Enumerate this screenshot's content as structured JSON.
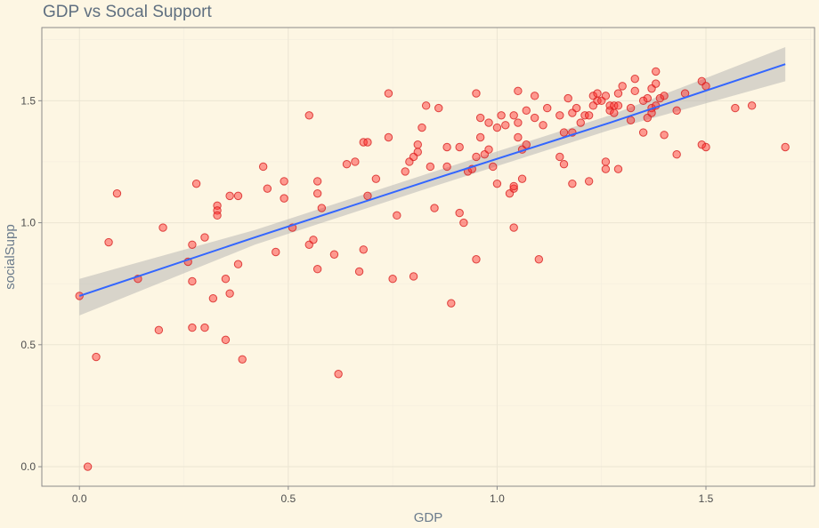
{
  "chart_data": {
    "type": "scatter",
    "title": "GDP vs Socal Support",
    "xlabel": "GDP",
    "ylabel": "socialSupp",
    "xlim": [
      -0.09,
      1.76
    ],
    "ylim": [
      -0.08,
      1.8
    ],
    "x_ticks": [
      0.0,
      0.5,
      1.0,
      1.5
    ],
    "y_ticks": [
      0.0,
      0.5,
      1.0,
      1.5
    ],
    "x_tick_labels": [
      "0.0",
      "0.5",
      "1.0",
      "1.5"
    ],
    "y_tick_labels": [
      "0.0",
      "0.5",
      "1.0",
      "1.5"
    ],
    "grid": true,
    "legend": "none",
    "point_color": "#ff2828",
    "fit_color": "#3366ff",
    "ci_color": "#aaaaaa",
    "background": "#fdf6e3",
    "trend": {
      "method": "linear",
      "x": [
        0.0,
        0.42,
        0.85,
        1.27,
        1.69
      ],
      "y": [
        0.7,
        0.94,
        1.18,
        1.41,
        1.65
      ],
      "ci_lower": [
        0.62,
        0.91,
        1.15,
        1.38,
        1.58
      ],
      "ci_upper": [
        0.77,
        0.97,
        1.21,
        1.44,
        1.72
      ]
    },
    "points": [
      [
        0.0,
        0.7
      ],
      [
        0.02,
        0.0
      ],
      [
        0.04,
        0.45
      ],
      [
        0.07,
        0.92
      ],
      [
        0.09,
        1.12
      ],
      [
        0.14,
        0.77
      ],
      [
        0.19,
        0.56
      ],
      [
        0.2,
        0.98
      ],
      [
        0.26,
        0.84
      ],
      [
        0.27,
        0.91
      ],
      [
        0.27,
        0.76
      ],
      [
        0.27,
        0.57
      ],
      [
        0.28,
        1.16
      ],
      [
        0.3,
        0.57
      ],
      [
        0.3,
        0.94
      ],
      [
        0.32,
        0.69
      ],
      [
        0.33,
        1.07
      ],
      [
        0.33,
        1.05
      ],
      [
        0.33,
        1.03
      ],
      [
        0.35,
        0.77
      ],
      [
        0.35,
        0.52
      ],
      [
        0.36,
        0.71
      ],
      [
        0.36,
        1.11
      ],
      [
        0.38,
        0.83
      ],
      [
        0.38,
        1.11
      ],
      [
        0.39,
        0.44
      ],
      [
        0.44,
        1.23
      ],
      [
        0.45,
        1.14
      ],
      [
        0.47,
        0.88
      ],
      [
        0.49,
        1.17
      ],
      [
        0.49,
        1.1
      ],
      [
        0.51,
        0.98
      ],
      [
        0.55,
        1.44
      ],
      [
        0.55,
        0.91
      ],
      [
        0.56,
        0.93
      ],
      [
        0.57,
        0.81
      ],
      [
        0.57,
        1.17
      ],
      [
        0.57,
        1.12
      ],
      [
        0.58,
        1.06
      ],
      [
        0.61,
        0.87
      ],
      [
        0.62,
        0.38
      ],
      [
        0.64,
        1.24
      ],
      [
        0.66,
        1.25
      ],
      [
        0.67,
        0.8
      ],
      [
        0.68,
        0.89
      ],
      [
        0.68,
        1.33
      ],
      [
        0.69,
        1.33
      ],
      [
        0.69,
        1.11
      ],
      [
        0.71,
        1.18
      ],
      [
        0.74,
        1.35
      ],
      [
        0.74,
        1.53
      ],
      [
        0.75,
        0.77
      ],
      [
        0.76,
        1.03
      ],
      [
        0.78,
        1.21
      ],
      [
        0.79,
        1.25
      ],
      [
        0.8,
        1.27
      ],
      [
        0.8,
        0.78
      ],
      [
        0.81,
        1.29
      ],
      [
        0.81,
        1.32
      ],
      [
        0.82,
        1.39
      ],
      [
        0.83,
        1.48
      ],
      [
        0.84,
        1.23
      ],
      [
        0.85,
        1.06
      ],
      [
        0.86,
        1.47
      ],
      [
        0.88,
        1.31
      ],
      [
        0.88,
        1.23
      ],
      [
        0.89,
        0.67
      ],
      [
        0.91,
        1.31
      ],
      [
        0.91,
        1.04
      ],
      [
        0.92,
        1.0
      ],
      [
        0.93,
        1.21
      ],
      [
        0.94,
        1.22
      ],
      [
        0.95,
        1.27
      ],
      [
        0.95,
        1.53
      ],
      [
        0.95,
        0.85
      ],
      [
        0.96,
        1.43
      ],
      [
        0.96,
        1.35
      ],
      [
        0.97,
        1.28
      ],
      [
        0.98,
        1.41
      ],
      [
        0.98,
        1.3
      ],
      [
        0.99,
        1.23
      ],
      [
        1.0,
        1.16
      ],
      [
        1.0,
        1.39
      ],
      [
        1.01,
        1.44
      ],
      [
        1.02,
        1.4
      ],
      [
        1.03,
        1.12
      ],
      [
        1.04,
        1.44
      ],
      [
        1.04,
        1.14
      ],
      [
        1.04,
        1.15
      ],
      [
        1.04,
        0.98
      ],
      [
        1.05,
        1.35
      ],
      [
        1.05,
        1.41
      ],
      [
        1.05,
        1.54
      ],
      [
        1.06,
        1.18
      ],
      [
        1.06,
        1.3
      ],
      [
        1.07,
        1.32
      ],
      [
        1.07,
        1.46
      ],
      [
        1.09,
        1.52
      ],
      [
        1.09,
        1.43
      ],
      [
        1.1,
        0.85
      ],
      [
        1.11,
        1.4
      ],
      [
        1.12,
        1.47
      ],
      [
        1.15,
        1.44
      ],
      [
        1.15,
        1.27
      ],
      [
        1.16,
        1.37
      ],
      [
        1.16,
        1.24
      ],
      [
        1.17,
        1.51
      ],
      [
        1.18,
        1.45
      ],
      [
        1.18,
        1.16
      ],
      [
        1.18,
        1.37
      ],
      [
        1.19,
        1.47
      ],
      [
        1.2,
        1.41
      ],
      [
        1.21,
        1.44
      ],
      [
        1.22,
        1.17
      ],
      [
        1.22,
        1.44
      ],
      [
        1.23,
        1.48
      ],
      [
        1.23,
        1.52
      ],
      [
        1.24,
        1.5
      ],
      [
        1.24,
        1.53
      ],
      [
        1.25,
        1.5
      ],
      [
        1.26,
        1.52
      ],
      [
        1.26,
        1.25
      ],
      [
        1.26,
        1.22
      ],
      [
        1.27,
        1.46
      ],
      [
        1.27,
        1.48
      ],
      [
        1.28,
        1.45
      ],
      [
        1.28,
        1.48
      ],
      [
        1.29,
        1.48
      ],
      [
        1.29,
        1.53
      ],
      [
        1.29,
        1.22
      ],
      [
        1.3,
        1.56
      ],
      [
        1.32,
        1.42
      ],
      [
        1.32,
        1.47
      ],
      [
        1.33,
        1.54
      ],
      [
        1.33,
        1.59
      ],
      [
        1.35,
        1.5
      ],
      [
        1.35,
        1.37
      ],
      [
        1.36,
        1.51
      ],
      [
        1.36,
        1.43
      ],
      [
        1.37,
        1.55
      ],
      [
        1.37,
        1.47
      ],
      [
        1.37,
        1.45
      ],
      [
        1.38,
        1.62
      ],
      [
        1.38,
        1.57
      ],
      [
        1.38,
        1.48
      ],
      [
        1.39,
        1.51
      ],
      [
        1.4,
        1.52
      ],
      [
        1.4,
        1.36
      ],
      [
        1.43,
        1.46
      ],
      [
        1.43,
        1.28
      ],
      [
        1.45,
        1.53
      ],
      [
        1.49,
        1.58
      ],
      [
        1.49,
        1.32
      ],
      [
        1.5,
        1.56
      ],
      [
        1.5,
        1.31
      ],
      [
        1.57,
        1.47
      ],
      [
        1.61,
        1.48
      ],
      [
        1.69,
        1.31
      ]
    ]
  }
}
